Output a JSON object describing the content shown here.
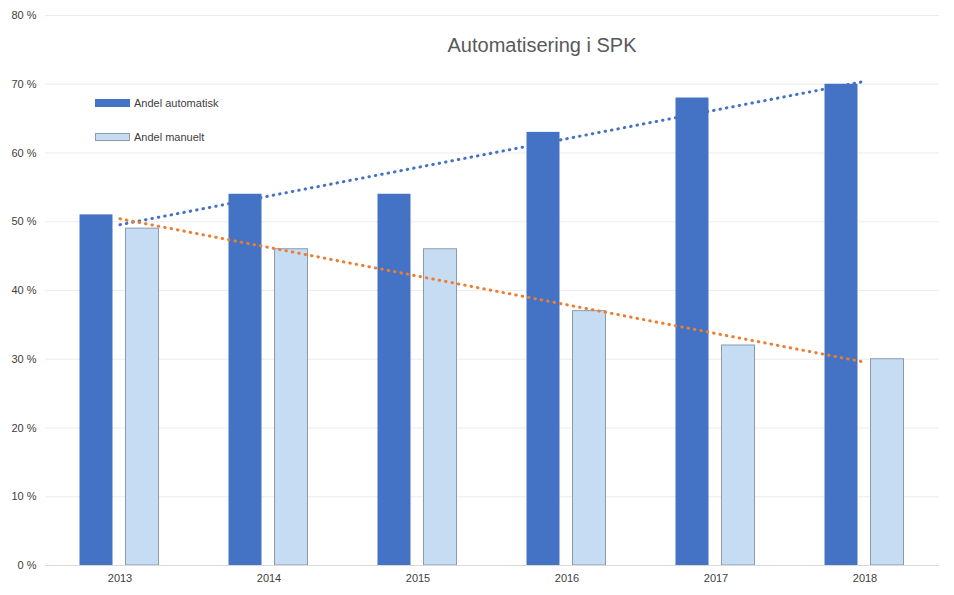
{
  "chart_data": {
    "type": "bar",
    "title": "Automatisering i SPK",
    "categories": [
      "2013",
      "2014",
      "2015",
      "2016",
      "2017",
      "2018"
    ],
    "series": [
      {
        "name": "Andel automatisk",
        "color": "#4472c4",
        "values": [
          51,
          54,
          54,
          63,
          68,
          70
        ]
      },
      {
        "name": "Andel manuelt",
        "color": "#c5dcf2",
        "values": [
          49,
          46,
          46,
          37,
          32,
          30
        ]
      }
    ],
    "ylim": [
      0,
      80
    ],
    "yticks": [
      {
        "value": 0,
        "label": "0 %"
      },
      {
        "value": 10,
        "label": "10 %"
      },
      {
        "value": 20,
        "label": "20 %"
      },
      {
        "value": 30,
        "label": "30 %"
      },
      {
        "value": 40,
        "label": "40 %"
      },
      {
        "value": 50,
        "label": "50 %"
      },
      {
        "value": 60,
        "label": "60 %"
      },
      {
        "value": 70,
        "label": "70 %"
      },
      {
        "value": 80,
        "label": "80 %"
      }
    ],
    "grid": true,
    "legend": "top-left"
  }
}
